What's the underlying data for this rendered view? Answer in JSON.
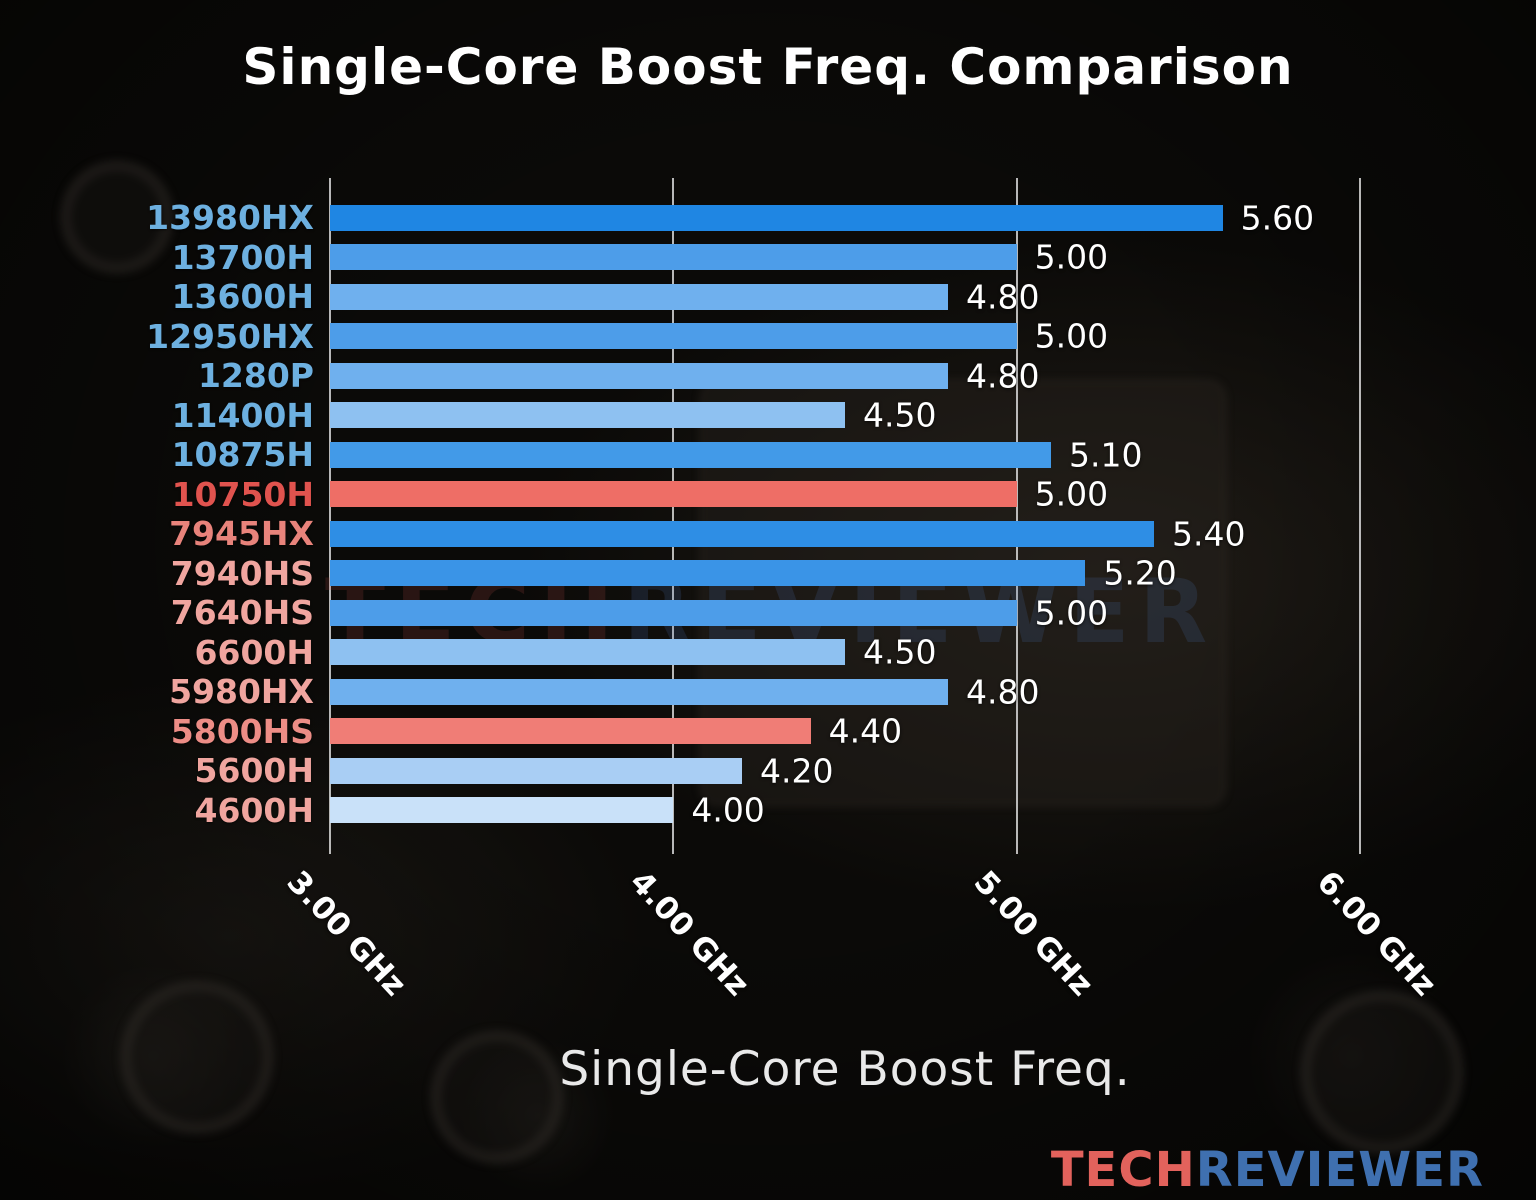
{
  "title": "Single-Core Boost Freq. Comparison",
  "axis_label": "Single-Core Boost Freq.",
  "watermark": {
    "text1": "TECH",
    "text2": "REVIEWER",
    "color1": "#b24b46",
    "color2": "#4a6fb0"
  },
  "logo": {
    "text1": "TECH",
    "text2": "REVIEWER",
    "color1": "#e2625c",
    "color2": "#3f70b0"
  },
  "colors": {
    "background": "#0b0a08",
    "gridline": "#d7d7d7",
    "value_text": "#ffffff",
    "intel_label": "#6db0e0",
    "amd_label": "#f0a59f",
    "highlight_red": "#ee6e66"
  },
  "chart_data": {
    "type": "bar",
    "orientation": "horizontal",
    "title": "Single-Core Boost Freq. Comparison",
    "xlabel": "Single-Core Boost Freq.",
    "unit": "GHz",
    "xlim": [
      3.0,
      6.0
    ],
    "grid": true,
    "ticks": [
      {
        "value": 3.0,
        "label": "3.00 GHz"
      },
      {
        "value": 4.0,
        "label": "4.00 GHz"
      },
      {
        "value": 5.0,
        "label": "5.00 GHz"
      },
      {
        "value": 6.0,
        "label": "6.00 GHz"
      }
    ],
    "items": [
      {
        "label": "13980HX",
        "value": 5.6,
        "display": "5.60",
        "bar_color": "#1f86e3",
        "label_color": "#6db0e0"
      },
      {
        "label": "13700H",
        "value": 5.0,
        "display": "5.00",
        "bar_color": "#4d9de9",
        "label_color": "#6db0e0"
      },
      {
        "label": "13600H",
        "value": 4.8,
        "display": "4.80",
        "bar_color": "#6fb0ee",
        "label_color": "#6db0e0"
      },
      {
        "label": "12950HX",
        "value": 5.0,
        "display": "5.00",
        "bar_color": "#4d9de9",
        "label_color": "#6db0e0"
      },
      {
        "label": "1280P",
        "value": 4.8,
        "display": "4.80",
        "bar_color": "#6fb0ee",
        "label_color": "#6db0e0"
      },
      {
        "label": "11400H",
        "value": 4.5,
        "display": "4.50",
        "bar_color": "#8ec1f1",
        "label_color": "#6db0e0"
      },
      {
        "label": "10875H",
        "value": 5.1,
        "display": "5.10",
        "bar_color": "#429ae8",
        "label_color": "#6db0e0"
      },
      {
        "label": "10750H",
        "value": 5.0,
        "display": "5.00",
        "bar_color": "#ee6e66",
        "label_color": "#e0534e"
      },
      {
        "label": "7945HX",
        "value": 5.4,
        "display": "5.40",
        "bar_color": "#2e8ee5",
        "label_color": "#e8837b"
      },
      {
        "label": "7940HS",
        "value": 5.2,
        "display": "5.20",
        "bar_color": "#3a94e7",
        "label_color": "#f0a59f"
      },
      {
        "label": "7640HS",
        "value": 5.0,
        "display": "5.00",
        "bar_color": "#4d9de9",
        "label_color": "#f0a59f"
      },
      {
        "label": "6600H",
        "value": 4.5,
        "display": "4.50",
        "bar_color": "#8ec1f1",
        "label_color": "#f0a59f"
      },
      {
        "label": "5980HX",
        "value": 4.8,
        "display": "4.80",
        "bar_color": "#6fb0ee",
        "label_color": "#f0a59f"
      },
      {
        "label": "5800HS",
        "value": 4.4,
        "display": "4.40",
        "bar_color": "#f07d76",
        "label_color": "#ed8d86"
      },
      {
        "label": "5600H",
        "value": 4.2,
        "display": "4.20",
        "bar_color": "#a9cef4",
        "label_color": "#f0a59f"
      },
      {
        "label": "4600H",
        "value": 4.0,
        "display": "4.00",
        "bar_color": "#c9e1f9",
        "label_color": "#f0a59f"
      }
    ]
  }
}
